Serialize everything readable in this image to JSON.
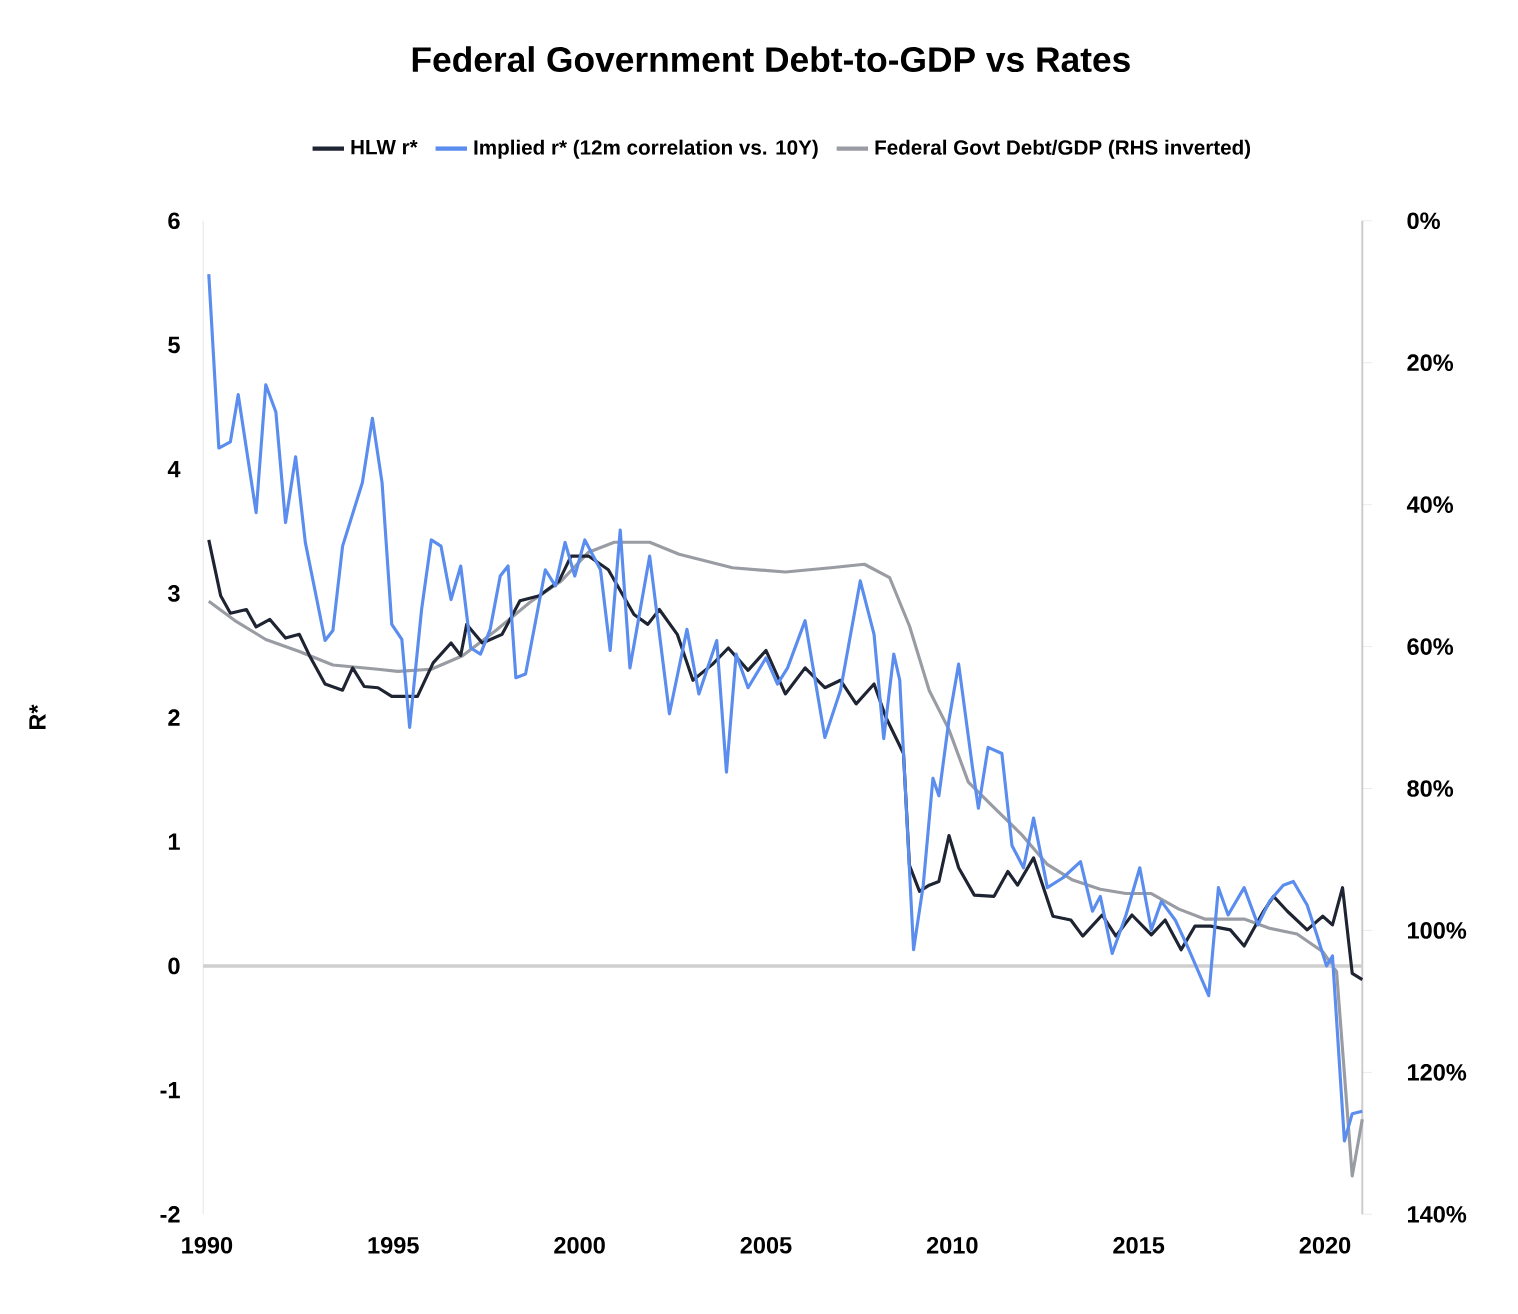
{
  "chart_data": {
    "type": "line",
    "title": "Federal Government Debt-to-GDP vs Rates",
    "ylabel": "R*",
    "xlim": [
      1989.9,
      2021.0
    ],
    "xticks": [
      1990,
      1995,
      2000,
      2005,
      2010,
      2015,
      2020
    ],
    "ylim": [
      -2,
      6
    ],
    "yticks": [
      -2,
      -1,
      0,
      1,
      2,
      3,
      4,
      5,
      6
    ],
    "y2lim": [
      140,
      0
    ],
    "y2ticks": [
      {
        "value": 0,
        "label": "0%"
      },
      {
        "value": 20,
        "label": "20%"
      },
      {
        "value": 40,
        "label": "40%"
      },
      {
        "value": 60,
        "label": "60%"
      },
      {
        "value": 80,
        "label": "80%"
      },
      {
        "value": 100,
        "label": "100%"
      },
      {
        "value": 120,
        "label": "120%"
      },
      {
        "value": 140,
        "label": "140%"
      }
    ],
    "legend": "top",
    "grid": false,
    "ref_lines": [
      {
        "axis": "y",
        "value": 0,
        "color": "#cfcfcf"
      }
    ],
    "series": [
      {
        "name": "HLW r*",
        "color": "#1f2433",
        "x": [
          1990.05,
          1990.37,
          1990.63,
          1991.06,
          1991.32,
          1991.69,
          1992.11,
          1992.48,
          1992.75,
          1993.17,
          1993.64,
          1993.91,
          1994.22,
          1994.59,
          1994.96,
          1995.65,
          1996.07,
          1996.55,
          1996.81,
          1996.97,
          1997.39,
          1997.92,
          1998.4,
          1998.92,
          1999.45,
          1999.77,
          2000.24,
          2000.77,
          2001.46,
          2001.83,
          2002.14,
          2002.62,
          2003.04,
          2003.57,
          2003.99,
          2004.52,
          2005.0,
          2005.52,
          2006.05,
          2006.58,
          2007.0,
          2007.42,
          2007.9,
          2008.22,
          2008.69,
          2008.85,
          2009.12,
          2009.38,
          2009.64,
          2009.91,
          2010.17,
          2010.59,
          2011.12,
          2011.49,
          2011.75,
          2012.18,
          2012.7,
          2013.18,
          2013.5,
          2014.02,
          2014.39,
          2014.82,
          2015.34,
          2015.71,
          2016.14,
          2016.51,
          2016.93,
          2017.46,
          2017.83,
          2018.35,
          2018.62,
          2018.99,
          2019.52,
          2019.94,
          2020.2,
          2020.47,
          2020.73,
          2021.0
        ],
        "values": [
          3.43,
          2.98,
          2.84,
          2.87,
          2.73,
          2.79,
          2.64,
          2.67,
          2.5,
          2.27,
          2.22,
          2.4,
          2.25,
          2.24,
          2.17,
          2.17,
          2.44,
          2.6,
          2.5,
          2.75,
          2.6,
          2.67,
          2.94,
          2.98,
          3.1,
          3.3,
          3.3,
          3.19,
          2.83,
          2.75,
          2.87,
          2.67,
          2.3,
          2.43,
          2.56,
          2.38,
          2.54,
          2.19,
          2.4,
          2.24,
          2.3,
          2.11,
          2.27,
          2.0,
          1.71,
          0.81,
          0.6,
          0.65,
          0.68,
          1.05,
          0.79,
          0.57,
          0.56,
          0.76,
          0.65,
          0.87,
          0.4,
          0.37,
          0.24,
          0.41,
          0.24,
          0.41,
          0.25,
          0.37,
          0.13,
          0.32,
          0.32,
          0.29,
          0.16,
          0.44,
          0.56,
          0.44,
          0.29,
          0.4,
          0.33,
          0.63,
          -0.06,
          -0.11
        ]
      },
      {
        "name": "Implied r* (12m correlation vs. 10Y)",
        "color": "#5b8def",
        "x": [
          1990.05,
          1990.32,
          1990.63,
          1990.84,
          1991.32,
          1991.58,
          1991.85,
          1992.11,
          1992.38,
          1992.64,
          1993.17,
          1993.38,
          1993.64,
          1994.17,
          1994.44,
          1994.7,
          1994.96,
          1995.23,
          1995.44,
          1995.76,
          1996.02,
          1996.28,
          1996.55,
          1996.81,
          1997.08,
          1997.34,
          1997.6,
          1997.87,
          1998.08,
          1998.29,
          1998.55,
          1999.08,
          1999.35,
          1999.61,
          1999.87,
          2000.14,
          2000.56,
          2000.82,
          2001.09,
          2001.35,
          2001.88,
          2002.41,
          2002.88,
          2003.2,
          2003.68,
          2003.94,
          2004.2,
          2004.52,
          2005.0,
          2005.31,
          2005.58,
          2006.05,
          2006.58,
          2007.0,
          2007.53,
          2007.9,
          2008.16,
          2008.43,
          2008.59,
          2008.96,
          2009.22,
          2009.48,
          2009.64,
          2009.91,
          2010.17,
          2010.54,
          2010.7,
          2010.96,
          2011.33,
          2011.6,
          2011.91,
          2012.18,
          2012.55,
          2012.97,
          2013.44,
          2013.76,
          2013.97,
          2014.29,
          2014.66,
          2015.03,
          2015.34,
          2015.61,
          2015.98,
          2016.35,
          2016.88,
          2017.14,
          2017.4,
          2017.83,
          2018.2,
          2018.51,
          2018.88,
          2019.15,
          2019.52,
          2019.78,
          2020.04,
          2020.2,
          2020.52,
          2020.73,
          2021.0
        ],
        "values": [
          5.57,
          4.17,
          4.22,
          4.6,
          3.65,
          4.68,
          4.46,
          3.57,
          4.1,
          3.41,
          2.62,
          2.7,
          3.38,
          3.89,
          4.41,
          3.89,
          2.75,
          2.63,
          1.92,
          2.87,
          3.43,
          3.38,
          2.95,
          3.22,
          2.56,
          2.51,
          2.71,
          3.14,
          3.22,
          2.32,
          2.35,
          3.19,
          3.06,
          3.41,
          3.14,
          3.43,
          3.19,
          2.54,
          3.51,
          2.4,
          3.3,
          2.03,
          2.71,
          2.19,
          2.62,
          1.56,
          2.51,
          2.24,
          2.48,
          2.27,
          2.4,
          2.78,
          1.84,
          2.22,
          3.1,
          2.67,
          1.83,
          2.51,
          2.3,
          0.13,
          0.65,
          1.51,
          1.37,
          1.98,
          2.43,
          1.6,
          1.27,
          1.76,
          1.71,
          0.97,
          0.79,
          1.19,
          0.63,
          0.71,
          0.84,
          0.44,
          0.56,
          0.1,
          0.41,
          0.79,
          0.29,
          0.52,
          0.37,
          0.13,
          -0.24,
          0.63,
          0.41,
          0.63,
          0.33,
          0.52,
          0.65,
          0.68,
          0.49,
          0.25,
          0,
          0.08,
          -1.41,
          -1.19,
          -1.17
        ]
      },
      {
        "name": "Federal Govt Debt/GDP (RHS inverted)",
        "color": "#9a9ca3",
        "axis": "y2",
        "x": [
          1990.05,
          1990.74,
          1991.58,
          1992.48,
          1993.38,
          1994.59,
          1995.12,
          1996.02,
          1996.86,
          1997.76,
          1998.66,
          1999.5,
          2000.24,
          2000.93,
          2001.88,
          2002.67,
          2004.1,
          2005.52,
          2006.74,
          2007.64,
          2008.32,
          2008.85,
          2009.38,
          2009.91,
          2010.43,
          2011.12,
          2011.86,
          2012.55,
          2013.23,
          2013.97,
          2014.66,
          2015.34,
          2016.08,
          2016.77,
          2017.83,
          2018.51,
          2019.25,
          2019.94,
          2020.31,
          2020.73,
          2021.0
        ],
        "values": [
          53.6,
          56.3,
          59,
          60.7,
          62.6,
          63.2,
          63.5,
          63.2,
          61.3,
          57.7,
          53.8,
          50.8,
          46.7,
          45.3,
          45.3,
          47,
          48.9,
          49.5,
          48.9,
          48.4,
          50.3,
          57.1,
          66.2,
          71.7,
          79.1,
          82.7,
          86.5,
          90.7,
          92.9,
          94.2,
          94.8,
          94.8,
          97,
          98.4,
          98.4,
          99.7,
          100.5,
          103,
          105.8,
          134.6,
          126.6
        ]
      }
    ]
  }
}
